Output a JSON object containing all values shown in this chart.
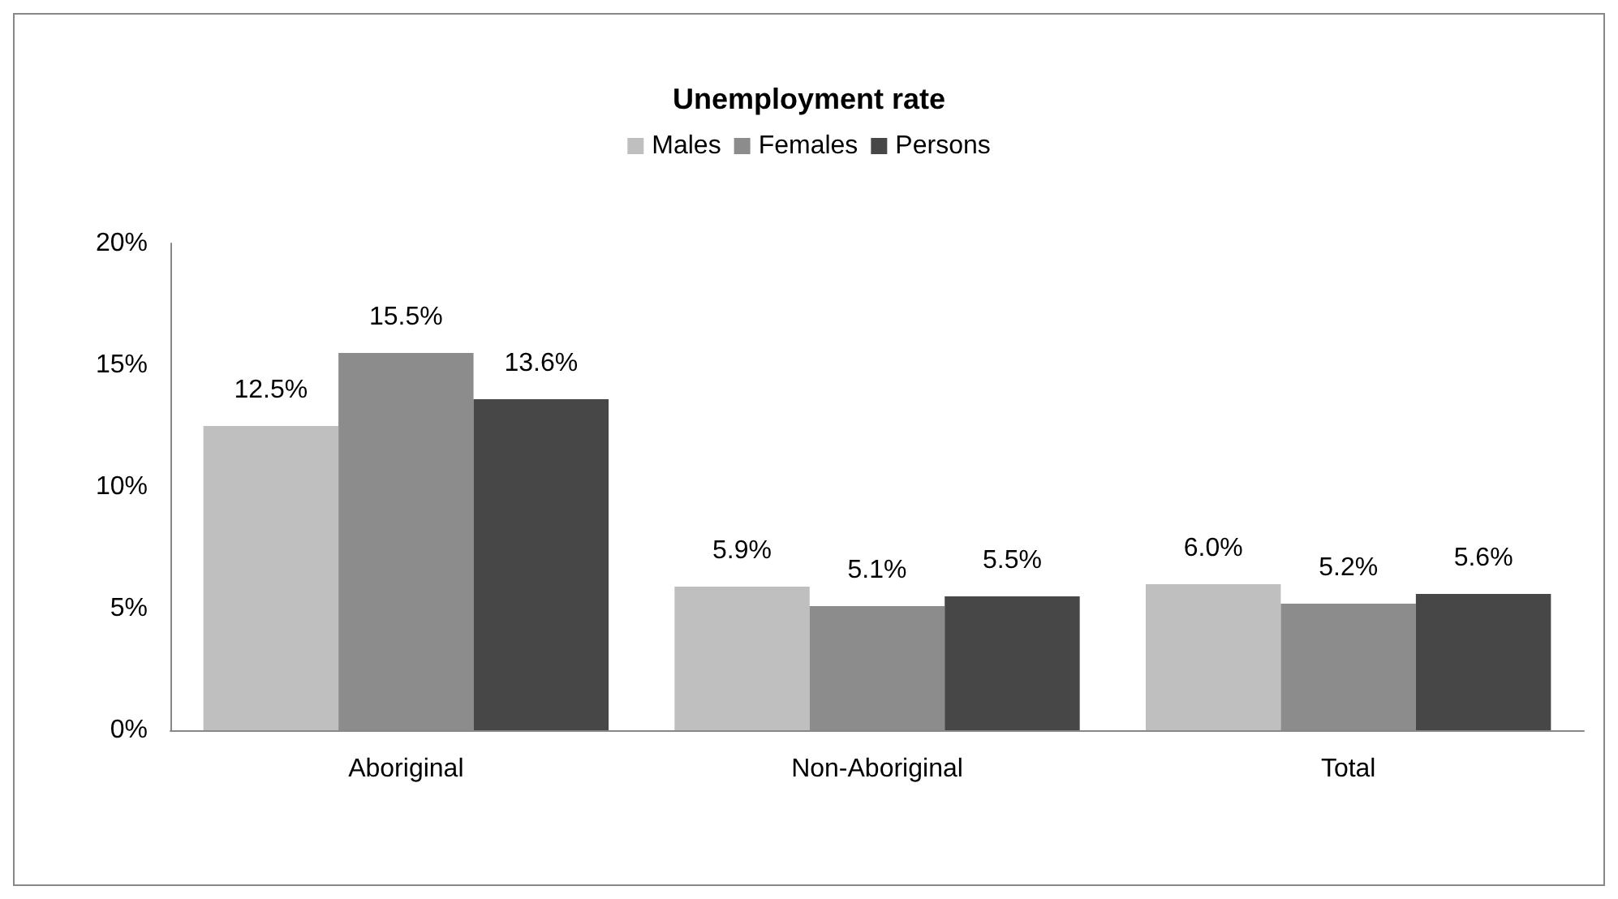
{
  "chart_data": {
    "type": "bar",
    "title": "Unemployment rate",
    "categories": [
      "Aboriginal",
      "Non-Aboriginal",
      "Total"
    ],
    "series": [
      {
        "name": "Males",
        "color": "#bfbfbf",
        "values": [
          12.5,
          5.9,
          6.0
        ],
        "value_labels": [
          "12.5%",
          "5.9%",
          "6.0%"
        ]
      },
      {
        "name": "Females",
        "color": "#8c8c8c",
        "values": [
          15.5,
          5.1,
          5.2
        ],
        "value_labels": [
          "15.5%",
          "5.1%",
          "5.2%"
        ]
      },
      {
        "name": "Persons",
        "color": "#474747",
        "values": [
          13.6,
          5.5,
          5.6
        ],
        "value_labels": [
          "13.6%",
          "5.5%",
          "5.6%"
        ]
      }
    ],
    "ylim": [
      0,
      20
    ],
    "yticks": [
      {
        "value": 0,
        "label": "0%"
      },
      {
        "value": 5,
        "label": "5%"
      },
      {
        "value": 10,
        "label": "10%"
      },
      {
        "value": 15,
        "label": "15%"
      },
      {
        "value": 20,
        "label": "20%"
      }
    ],
    "grid": false,
    "legend": "top"
  }
}
